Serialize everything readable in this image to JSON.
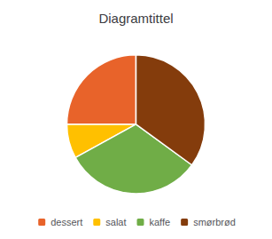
{
  "chart_data": {
    "type": "pie",
    "title": "Diagramtittel",
    "categories": [
      "dessert",
      "salat",
      "kaffe",
      "smørbrød"
    ],
    "values": [
      25,
      8,
      32,
      35
    ],
    "colors": [
      "#E8632A",
      "#FFC000",
      "#70AD47",
      "#843C0C"
    ],
    "legend": "bottom"
  }
}
